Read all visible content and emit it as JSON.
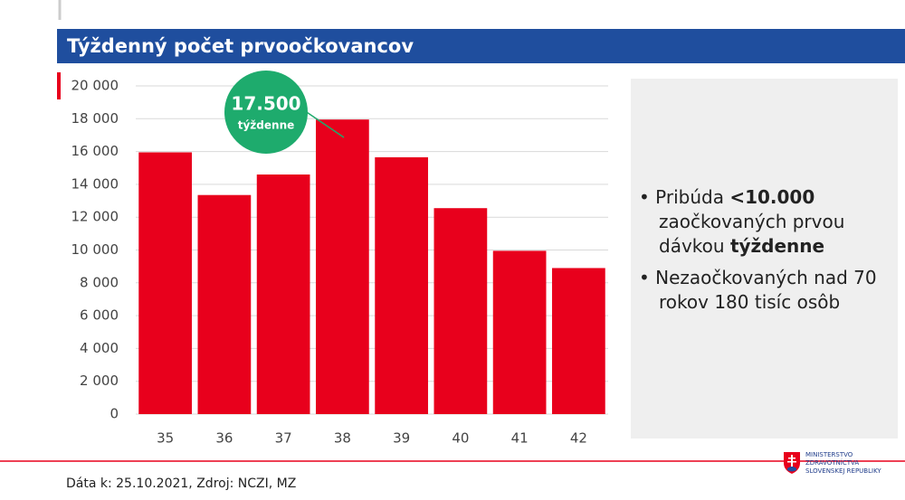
{
  "chart_data": {
    "type": "bar",
    "title": "Týždenný počet prvoočkovancov",
    "categories": [
      "35",
      "36",
      "37",
      "38",
      "39",
      "40",
      "41",
      "42"
    ],
    "values": [
      15950,
      13350,
      14600,
      17950,
      15650,
      12550,
      9950,
      8900
    ],
    "color": "#e8001c",
    "ylim": [
      0,
      20000
    ],
    "yticks": [
      0,
      {
        "value": 2000,
        "label": "2 000"
      },
      {
        "value": 4000,
        "label": "4 000"
      },
      {
        "value": 6000,
        "label": "6 000"
      },
      {
        "value": 8000,
        "label": "8 000"
      },
      {
        "value": 10000,
        "label": "10 000"
      },
      {
        "value": 12000,
        "label": "12 000"
      },
      {
        "value": 14000,
        "label": "14 000"
      },
      {
        "value": 16000,
        "label": "16 000"
      },
      {
        "value": 18000,
        "label": "18 000"
      },
      {
        "value": 20000,
        "label": "20 000"
      }
    ],
    "grid": true,
    "annotation": {
      "text": "17.500",
      "subtext": "týždenne"
    }
  },
  "bullets": [
    [
      "Pribúda ",
      "<10.000",
      " zaočkovaných prvou dávkou ",
      "týždenne"
    ],
    [
      "Nezaočkovaných nad 70 rokov 180 tisíc osôb"
    ]
  ],
  "footer": "Dáta k: 25.10.2021, Zdroj: NCZI, MZ",
  "logo": [
    "MINISTERSTVO",
    "ZDRAVOTNÍCTVA",
    "SLOVENSKEJ REPUBLIKY"
  ]
}
